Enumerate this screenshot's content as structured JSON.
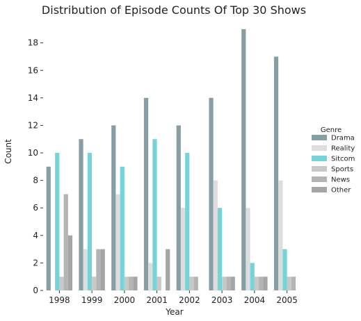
{
  "chart_data": {
    "type": "bar",
    "title": "Distribution of Episode Counts Of Top 30 Shows",
    "xlabel": "Year",
    "ylabel": "Count",
    "ylim": [
      0,
      19.5
    ],
    "yticks": [
      0,
      2,
      4,
      6,
      8,
      10,
      12,
      14,
      16,
      18
    ],
    "grid": false,
    "legend_position": "right",
    "legend_title": "Genre",
    "categories": [
      "1998",
      "1999",
      "2000",
      "2001",
      "2002",
      "2003",
      "2004",
      "2005"
    ],
    "series": [
      {
        "name": "Drama",
        "color": "#879ea5",
        "values": [
          9,
          11,
          12,
          14,
          12,
          14,
          19,
          17
        ]
      },
      {
        "name": "Reality",
        "color": "#dddddd",
        "values": [
          0,
          3,
          7,
          2,
          6,
          8,
          6,
          8
        ]
      },
      {
        "name": "Sitcom",
        "color": "#75d4d8",
        "values": [
          10,
          10,
          9,
          11,
          10,
          6,
          2,
          3
        ]
      },
      {
        "name": "Sports",
        "color": "#c8c8c8",
        "values": [
          1,
          1,
          1,
          1,
          1,
          1,
          1,
          1
        ]
      },
      {
        "name": "News",
        "color": "#b4b4b4",
        "values": [
          7,
          3,
          1,
          0,
          1,
          1,
          1,
          1
        ]
      },
      {
        "name": "Other",
        "color": "#a5a5a5",
        "values": [
          4,
          3,
          1,
          3,
          0,
          1,
          1,
          0
        ]
      }
    ]
  }
}
